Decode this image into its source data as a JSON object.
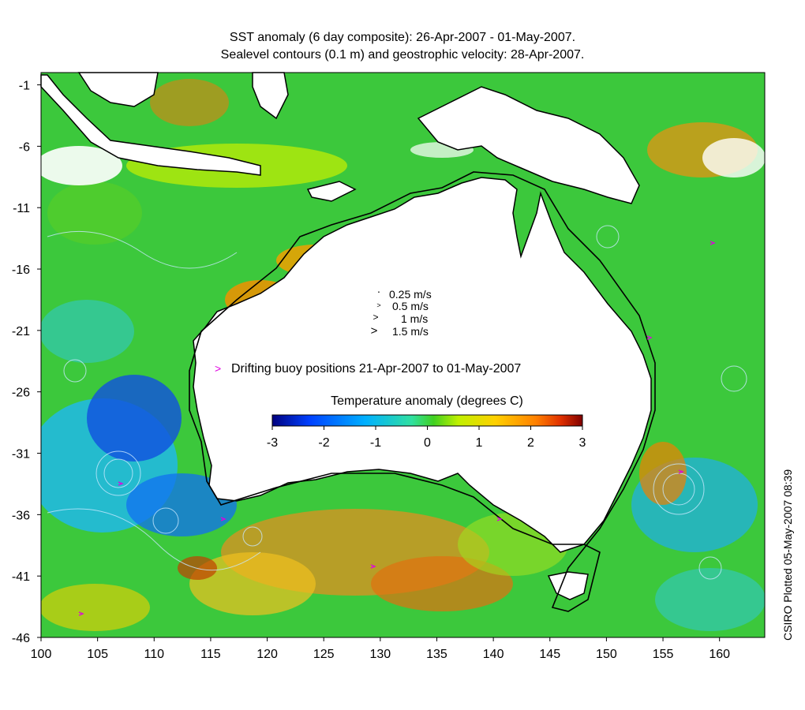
{
  "title_line1": "SST anomaly (6 day composite): 26-Apr-2007 - 01-May-2007.",
  "title_line2": "Sealevel contours (0.1 m) and geostrophic velocity: 28-Apr-2007.",
  "velocity_legend": [
    "0.25 m/s",
    "0.5 m/s",
    "1 m/s",
    "1.5 m/s"
  ],
  "buoy_legend": "Drifting buoy positions 21-Apr-2007 to 01-May-2007",
  "colorbar": {
    "label": "Temperature anomaly (degrees C)",
    "ticks": [
      "-3",
      "-2",
      "-1",
      "0",
      "1",
      "2",
      "3"
    ],
    "range": [
      -3,
      3
    ],
    "colors": [
      "#00007f",
      "#0040ff",
      "#00b0ff",
      "#30e0a0",
      "#40d020",
      "#c0f000",
      "#ffd000",
      "#ff8000",
      "#e03000",
      "#800000"
    ]
  },
  "axes": {
    "lon_ticks": [
      "100",
      "105",
      "110",
      "115",
      "120",
      "125",
      "130",
      "135",
      "140",
      "145",
      "150",
      "155",
      "160"
    ],
    "lat_ticks": [
      "-1",
      "-6",
      "-11",
      "-16",
      "-21",
      "-26",
      "-31",
      "-36",
      "-41",
      "-46"
    ],
    "lon_range": [
      100,
      164
    ],
    "lat_range": [
      -46,
      0
    ]
  },
  "credit": "CSIRO Plotted 05-May-2007 08:39",
  "colors": {
    "ocean_base": "#3cc83c",
    "land": "#ffffff",
    "coast": "#000000",
    "contour": "#c8e8ff",
    "buoy": "#e000e0",
    "shelf_line": "#000000"
  }
}
